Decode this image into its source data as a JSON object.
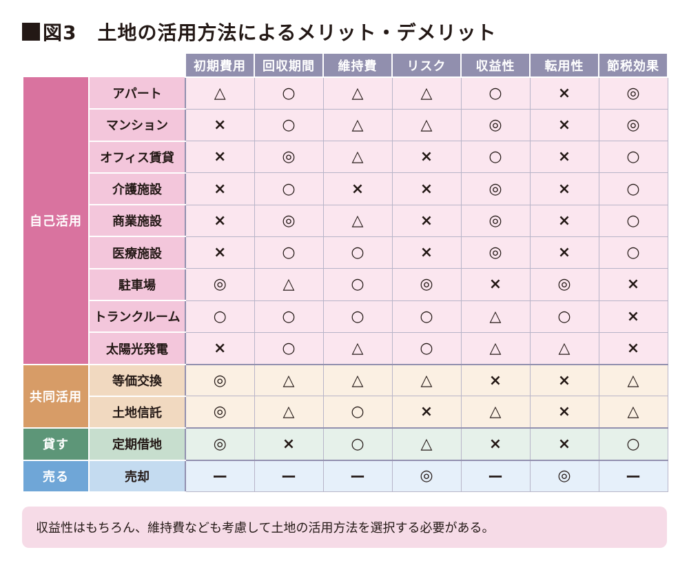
{
  "title": {
    "prefix": "図3",
    "text": "土地の活用方法によるメリット・デメリット"
  },
  "columns": [
    "初期費用",
    "回収期間",
    "維持費",
    "リスク",
    "収益性",
    "転用性",
    "節税効果"
  ],
  "groups": [
    {
      "label": "自己活用",
      "key": "jiko",
      "rows": [
        {
          "name": "アパート",
          "values": [
            "△",
            "○",
            "△",
            "△",
            "○",
            "×",
            "◎"
          ]
        },
        {
          "name": "マンション",
          "values": [
            "×",
            "○",
            "△",
            "△",
            "◎",
            "×",
            "◎"
          ]
        },
        {
          "name": "オフィス賃貸",
          "values": [
            "×",
            "◎",
            "△",
            "×",
            "○",
            "×",
            "○"
          ]
        },
        {
          "name": "介護施設",
          "values": [
            "×",
            "○",
            "×",
            "×",
            "◎",
            "×",
            "○"
          ]
        },
        {
          "name": "商業施設",
          "values": [
            "×",
            "◎",
            "△",
            "×",
            "◎",
            "×",
            "○"
          ]
        },
        {
          "name": "医療施設",
          "values": [
            "×",
            "○",
            "○",
            "×",
            "◎",
            "×",
            "○"
          ]
        },
        {
          "name": "駐車場",
          "values": [
            "◎",
            "△",
            "○",
            "◎",
            "×",
            "◎",
            "×"
          ]
        },
        {
          "name": "トランクルーム",
          "values": [
            "○",
            "○",
            "○",
            "○",
            "△",
            "○",
            "×"
          ]
        },
        {
          "name": "太陽光発電",
          "values": [
            "×",
            "○",
            "△",
            "○",
            "△",
            "△",
            "×"
          ]
        }
      ]
    },
    {
      "label": "共同活用",
      "key": "kyodo",
      "rows": [
        {
          "name": "等価交換",
          "values": [
            "◎",
            "△",
            "△",
            "△",
            "×",
            "×",
            "△"
          ]
        },
        {
          "name": "土地信託",
          "values": [
            "◎",
            "△",
            "○",
            "×",
            "△",
            "×",
            "△"
          ]
        }
      ]
    },
    {
      "label": "貸す",
      "key": "kasu",
      "rows": [
        {
          "name": "定期借地",
          "values": [
            "◎",
            "×",
            "○",
            "△",
            "×",
            "×",
            "○"
          ]
        }
      ]
    },
    {
      "label": "売る",
      "key": "uru",
      "rows": [
        {
          "name": "売却",
          "values": [
            "ー",
            "ー",
            "ー",
            "◎",
            "ー",
            "◎",
            "ー"
          ]
        }
      ]
    }
  ],
  "note": "収益性はもちろん、維持費なども考慮して土地の活用方法を選択する必要がある。"
}
